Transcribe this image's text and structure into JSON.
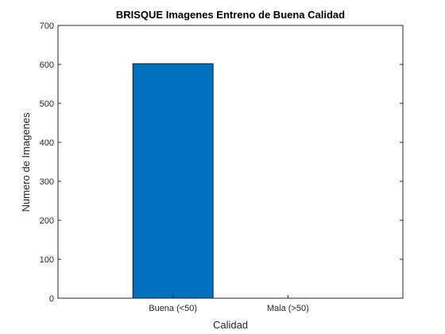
{
  "chart_data": {
    "type": "bar",
    "title": "BRISQUE Imagenes Entreno de Buena Calidad",
    "xlabel": "Calidad",
    "ylabel": "Numero de Imagenes",
    "categories": [
      "Buena (<50)",
      "Mala (>50)"
    ],
    "values": [
      602,
      0
    ],
    "ylim": [
      0,
      700
    ],
    "yticks": [
      0,
      100,
      200,
      300,
      400,
      500,
      600,
      700
    ],
    "grid": false,
    "bar_color": "#0072BD"
  }
}
